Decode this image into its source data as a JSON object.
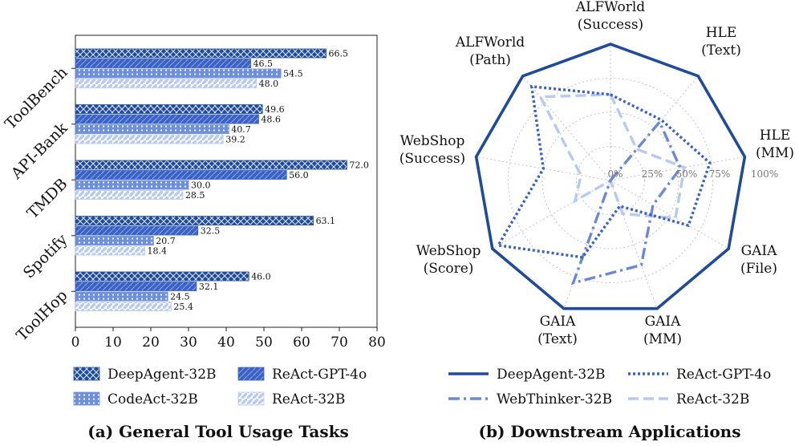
{
  "colors": {
    "deepagent": "#1f4b99",
    "react_gpt4o": "#3a62c4",
    "codeact": "#6e8fda",
    "react32b": "#b9caf1",
    "webthinker": "#6b8ad6",
    "grid": "#bdbdbd"
  },
  "chart_data": [
    {
      "type": "bar",
      "orientation": "horizontal",
      "caption": "(a) General Tool Usage Tasks",
      "categories": [
        "ToolBench",
        "API-Bank",
        "TMDB",
        "Spotify",
        "ToolHop"
      ],
      "xlim": [
        0,
        80
      ],
      "xticks": [
        "0",
        "10",
        "20",
        "30",
        "40",
        "50",
        "60",
        "70",
        "80"
      ],
      "series": [
        {
          "name": "DeepAgent-32B",
          "values": [
            66.5,
            49.6,
            72.0,
            63.1,
            46.0
          ],
          "labels": [
            "66.5",
            "49.6",
            "72.0",
            "63.1",
            "46.0"
          ]
        },
        {
          "name": "ReAct-GPT-4o",
          "values": [
            46.5,
            48.6,
            56.0,
            32.5,
            32.1
          ],
          "labels": [
            "46.5",
            "48.6",
            "56.0",
            "32.5",
            "32.1"
          ]
        },
        {
          "name": "CodeAct-32B",
          "values": [
            54.5,
            40.7,
            30.0,
            20.7,
            24.5
          ],
          "labels": [
            "54.5",
            "40.7",
            "30.0",
            "20.7",
            "24.5"
          ]
        },
        {
          "name": "ReAct-32B",
          "values": [
            48.0,
            39.2,
            28.5,
            18.4,
            25.4
          ],
          "labels": [
            "48.0",
            "39.2",
            "28.5",
            "18.4",
            "25.4"
          ]
        }
      ],
      "legend_position": "bottom",
      "grid": false
    },
    {
      "type": "radar",
      "caption": "(b) Downstream Applications",
      "axes": [
        [
          "ALFWorld",
          "(Success)"
        ],
        [
          "HLE",
          "(Text)"
        ],
        [
          "HLE",
          "(MM)"
        ],
        [
          "GAIA",
          "(File)"
        ],
        [
          "GAIA",
          "(MM)"
        ],
        [
          "GAIA",
          "(Text)"
        ],
        [
          "WebShop",
          "(Score)"
        ],
        [
          "WebShop",
          "(Success)"
        ],
        [
          "ALFWorld",
          "(Path)"
        ]
      ],
      "radial_ticks": [
        "0%",
        "25%",
        "50%",
        "75%",
        "100%"
      ],
      "series": [
        {
          "name": "DeepAgent-32B",
          "values": [
            1.0,
            1.0,
            1.0,
            1.0,
            1.0,
            1.0,
            1.0,
            1.0,
            1.0
          ]
        },
        {
          "name": "ReAct-GPT-4o",
          "values": [
            0.63,
            0.58,
            0.74,
            0.66,
            0.2,
            0.6,
            0.95,
            0.5,
            0.9
          ]
        },
        {
          "name": "WebThinker-32B",
          "values": [
            0.0,
            0.56,
            0.52,
            0.36,
            0.66,
            0.8,
            0.0,
            0.0,
            0.0
          ]
        },
        {
          "name": "ReAct-32B",
          "values": [
            0.63,
            0.3,
            0.55,
            0.55,
            0.26,
            0.0,
            0.3,
            0.22,
            0.8
          ]
        }
      ],
      "legend_position": "bottom",
      "grid": true
    }
  ]
}
